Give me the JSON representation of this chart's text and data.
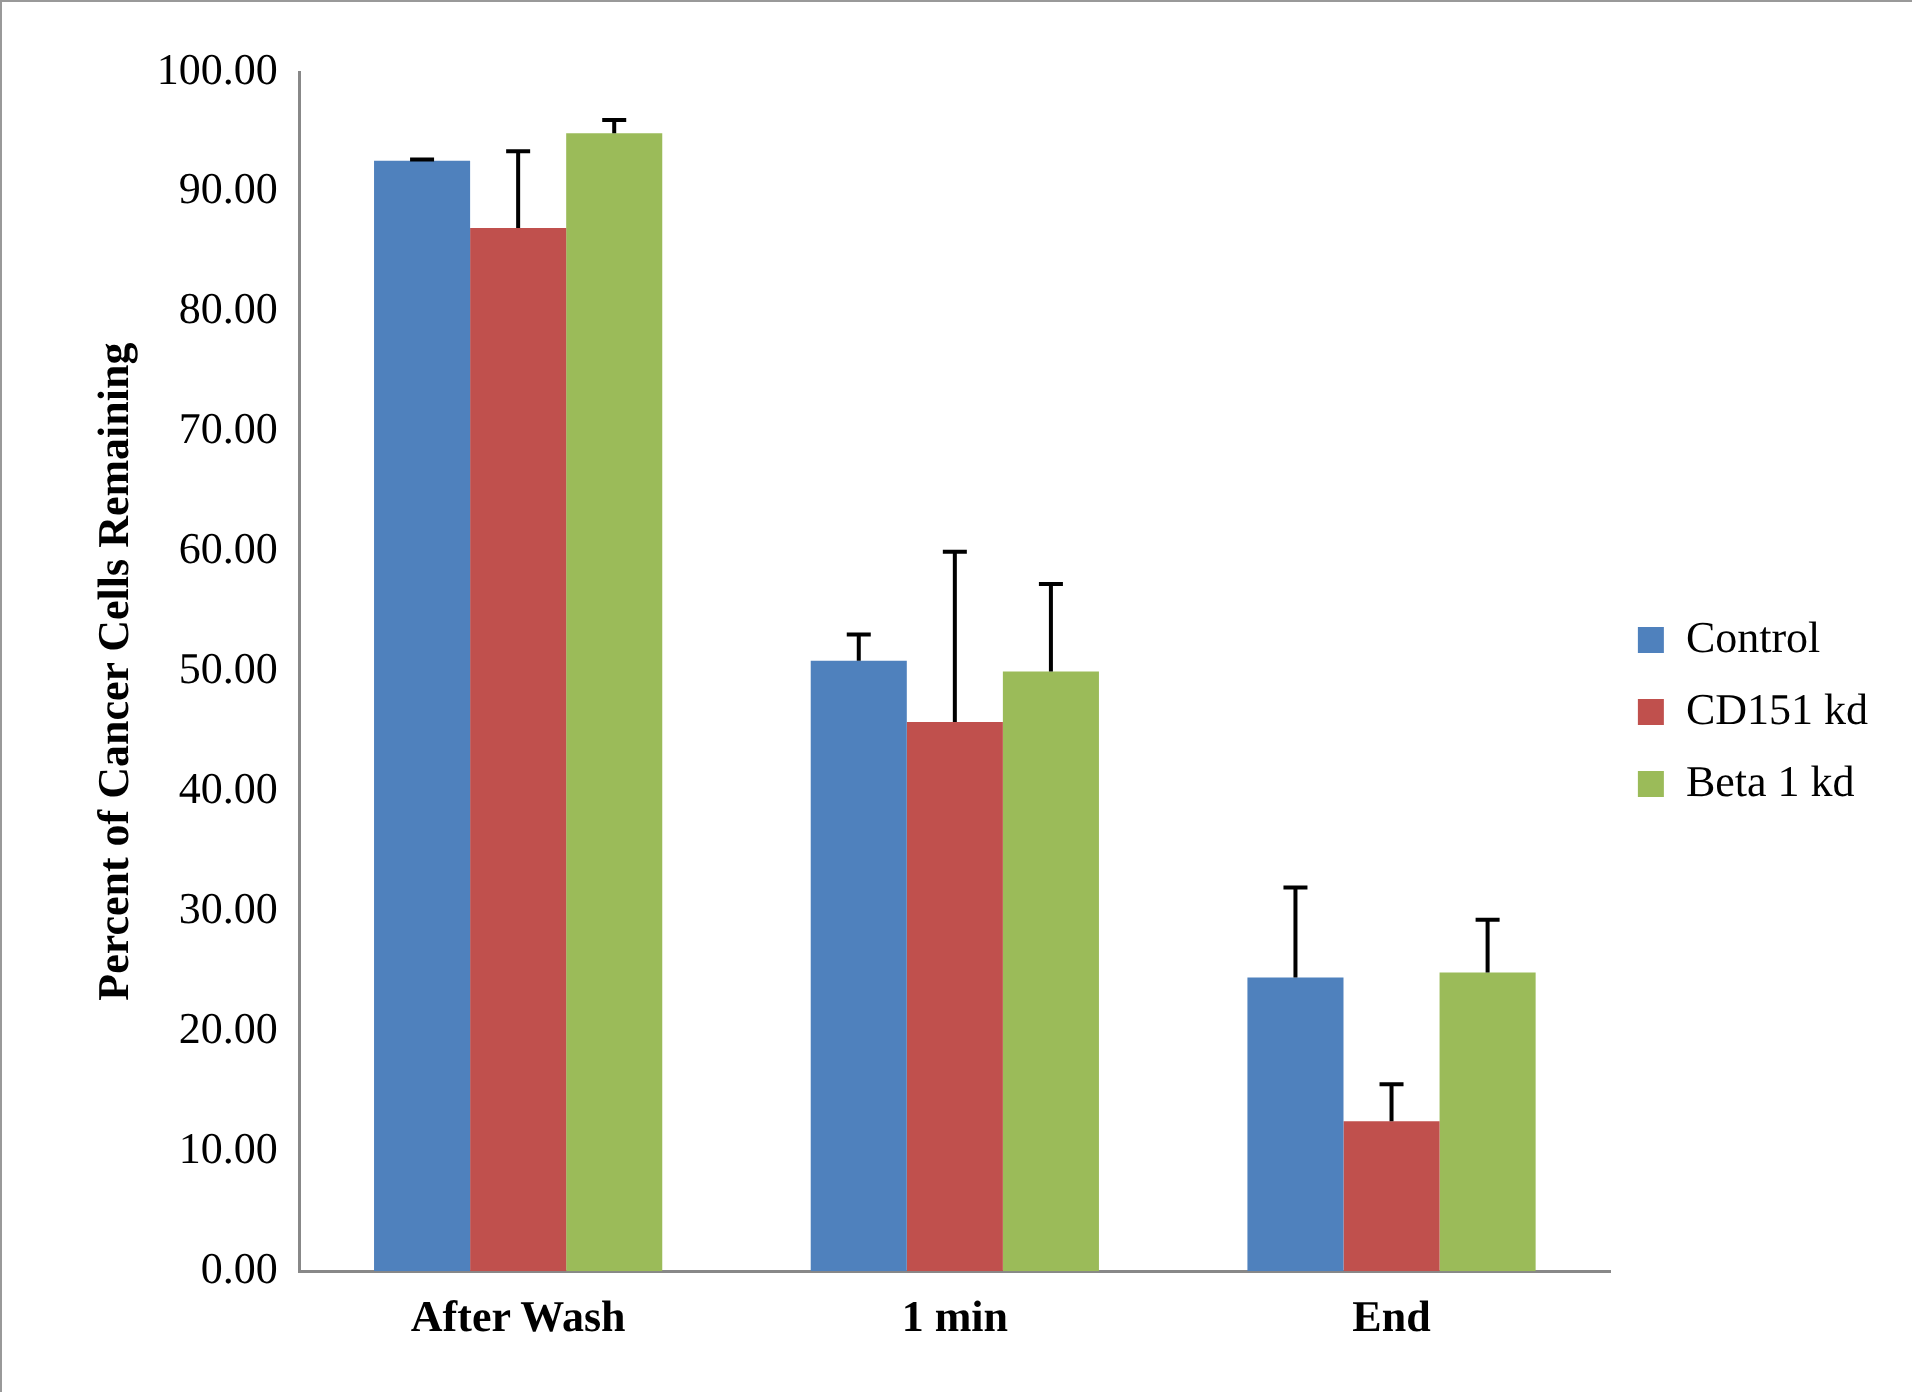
{
  "chart_data": {
    "type": "bar",
    "ylabel": "Percent of Cancer Cells Remaining",
    "categories": [
      "After Wash",
      "1 min",
      "End"
    ],
    "series": [
      {
        "name": "Control",
        "color": "#4f81bd",
        "values": [
          92.6,
          50.9,
          24.5
        ],
        "errors": [
          [
            92.6,
            92.7
          ],
          [
            50.9,
            53.1
          ],
          [
            24.5,
            32.0
          ]
        ]
      },
      {
        "name": "CD151 kd",
        "color": "#c0504d",
        "values": [
          87.0,
          45.8,
          12.5
        ],
        "errors": [
          [
            87.0,
            93.4
          ],
          [
            45.8,
            60.0
          ],
          [
            12.5,
            15.6
          ]
        ]
      },
      {
        "name": "Beta 1 kd",
        "color": "#9bbb59",
        "values": [
          94.9,
          50.0,
          24.9
        ],
        "errors": [
          [
            94.9,
            96.0
          ],
          [
            50.0,
            57.3
          ],
          [
            24.9,
            29.3
          ]
        ]
      }
    ],
    "ylim": [
      0,
      100
    ],
    "yticks": [
      {
        "value": 0,
        "label": "0.00"
      },
      {
        "value": 10,
        "label": "10.00"
      },
      {
        "value": 20,
        "label": "20.00"
      },
      {
        "value": 30,
        "label": "30.00"
      },
      {
        "value": 40,
        "label": "40.00"
      },
      {
        "value": 50,
        "label": "50.00"
      },
      {
        "value": 60,
        "label": "60.00"
      },
      {
        "value": 70,
        "label": "70.00"
      },
      {
        "value": 80,
        "label": "80.00"
      },
      {
        "value": 90,
        "label": "90.00"
      },
      {
        "value": 100,
        "label": "100.00"
      }
    ],
    "grid": false,
    "legend": "right"
  }
}
